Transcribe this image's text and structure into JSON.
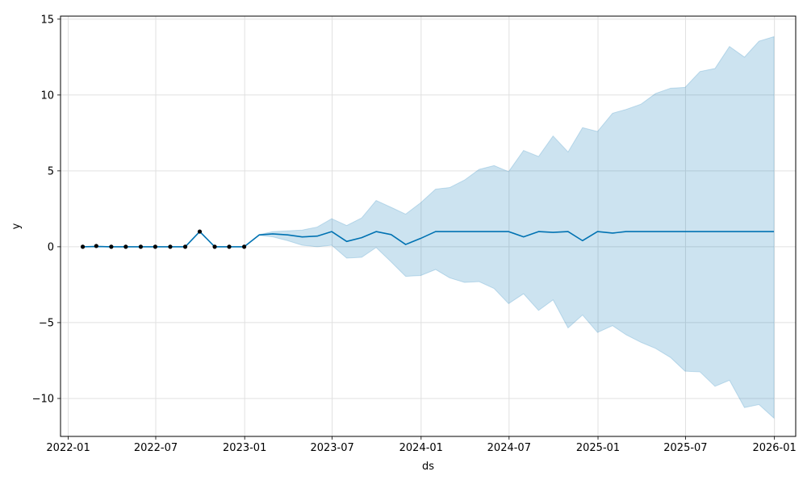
{
  "chart_data": {
    "type": "line",
    "xlabel": "ds",
    "ylabel": "y",
    "grid": true,
    "xlim": [
      "2021-12-16",
      "2026-02-14"
    ],
    "ylim": [
      -12.5,
      15.2
    ],
    "x_ticks": [
      "2022-01",
      "2022-07",
      "2023-01",
      "2023-07",
      "2024-01",
      "2024-07",
      "2025-01",
      "2025-07",
      "2026-01"
    ],
    "y_ticks": [
      -10,
      -5,
      0,
      5,
      10,
      15
    ],
    "y_tick_labels": [
      "−10",
      "−5",
      "0",
      "5",
      "10",
      "15"
    ],
    "colors": {
      "forecast_line": "#0072B2",
      "uncertainty_band": "#0072B2",
      "observed_points": "#000000",
      "grid": "#e0e0e0"
    },
    "observed": {
      "x": [
        "2022-01-31",
        "2022-02-28",
        "2022-03-31",
        "2022-04-30",
        "2022-05-31",
        "2022-06-30",
        "2022-07-31",
        "2022-08-31",
        "2022-09-30",
        "2022-10-31",
        "2022-11-30",
        "2022-12-31"
      ],
      "y": [
        0,
        0.05,
        0,
        0,
        0,
        0,
        0,
        0,
        1,
        0,
        0,
        0
      ]
    },
    "forecast": {
      "x": [
        "2022-01-31",
        "2022-02-28",
        "2022-03-31",
        "2022-04-30",
        "2022-05-31",
        "2022-06-30",
        "2022-07-31",
        "2022-08-31",
        "2022-09-30",
        "2022-10-31",
        "2022-11-30",
        "2022-12-31",
        "2023-01-31",
        "2023-02-28",
        "2023-03-31",
        "2023-04-30",
        "2023-05-31",
        "2023-06-30",
        "2023-07-31",
        "2023-08-31",
        "2023-09-30",
        "2023-10-31",
        "2023-11-30",
        "2023-12-31",
        "2024-01-31",
        "2024-02-29",
        "2024-03-31",
        "2024-04-30",
        "2024-05-31",
        "2024-06-30",
        "2024-07-31",
        "2024-08-31",
        "2024-09-30",
        "2024-10-31",
        "2024-11-30",
        "2024-12-31",
        "2025-01-31",
        "2025-02-28",
        "2025-03-31",
        "2025-04-30",
        "2025-05-31",
        "2025-06-30",
        "2025-07-31",
        "2025-08-31",
        "2025-09-30",
        "2025-10-31",
        "2025-11-30",
        "2025-12-31"
      ],
      "yhat": [
        0,
        0.02,
        0,
        0,
        0,
        0,
        0,
        0,
        1,
        0,
        0,
        0,
        0.78,
        0.85,
        0.78,
        0.65,
        0.7,
        1.0,
        0.35,
        0.6,
        1.0,
        0.8,
        0.15,
        0.55,
        1.0,
        1.0,
        1.0,
        1.0,
        1.0,
        1.0,
        0.65,
        1.0,
        0.95,
        1.0,
        0.4,
        1.0,
        0.9,
        1.0,
        1.0,
        1.0,
        1.0,
        1.0,
        1.0,
        1.0,
        1.0,
        1.0,
        1.0,
        1.0
      ],
      "yhat_upper": [
        0,
        0.05,
        0,
        0,
        0,
        0,
        0,
        0,
        1,
        0,
        0,
        0,
        0.8,
        1.0,
        1.05,
        1.1,
        1.3,
        1.85,
        1.4,
        1.9,
        3.05,
        2.6,
        2.15,
        2.9,
        3.8,
        3.9,
        4.4,
        5.1,
        5.35,
        4.95,
        6.35,
        5.95,
        7.3,
        6.25,
        7.85,
        7.6,
        8.8,
        9.05,
        9.4,
        10.1,
        10.45,
        10.5,
        11.55,
        11.75,
        13.2,
        12.5,
        13.55,
        13.85
      ],
      "yhat_lower": [
        0,
        0,
        0,
        0,
        0,
        0,
        0,
        0,
        1,
        0,
        0,
        0,
        0.75,
        0.65,
        0.4,
        0.1,
        0,
        0.1,
        -0.75,
        -0.7,
        -0.05,
        -1.0,
        -1.95,
        -1.9,
        -1.5,
        -2.05,
        -2.35,
        -2.3,
        -2.75,
        -3.75,
        -3.1,
        -4.2,
        -3.5,
        -5.35,
        -4.5,
        -5.65,
        -5.2,
        -5.8,
        -6.3,
        -6.7,
        -7.3,
        -8.2,
        -8.25,
        -9.2,
        -8.8,
        -10.6,
        -10.4,
        -11.3
      ]
    }
  }
}
